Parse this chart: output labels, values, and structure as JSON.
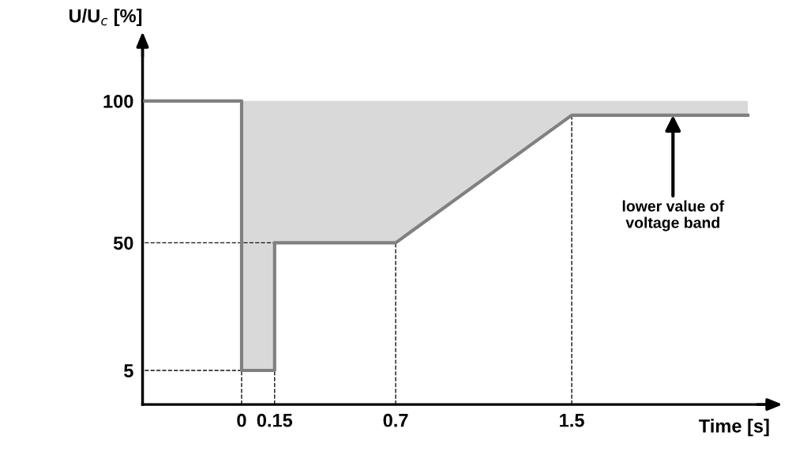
{
  "chart_data": {
    "type": "line",
    "xlabel": "Time [s]",
    "ylabel": "U/U$_{c}$ [%]",
    "x": [
      -0.44,
      0,
      0,
      0.15,
      0.15,
      0.7,
      1.5,
      2.3
    ],
    "series": [
      {
        "color": "#808080",
        "values": [
          100,
          100,
          5,
          5,
          50,
          50,
          95,
          95
        ],
        "lower": [
          100,
          100,
          5,
          5,
          50,
          50,
          95,
          95
        ],
        "upper": [
          100,
          100,
          100,
          100,
          100,
          100,
          100,
          100
        ]
      },
      {
        "type": "line",
        "line_style": "dashed",
        "color": "#111111",
        "x": [
          0,
          0
        ],
        "values": [
          -7,
          5
        ]
      },
      {
        "type": "line",
        "line_style": "dashed",
        "color": "#111111",
        "x": [
          0.15,
          0.15
        ],
        "values": [
          -7,
          5
        ]
      },
      {
        "type": "line",
        "line_style": "dashed",
        "color": "#111111",
        "x": [
          0.7,
          0.7
        ],
        "values": [
          -7,
          50
        ]
      },
      {
        "type": "line",
        "line_style": "dashed",
        "color": "#111111",
        "x": [
          1.5,
          1.5
        ],
        "values": [
          -7,
          95
        ]
      },
      {
        "type": "line",
        "line_style": "dashed",
        "color": "#111111",
        "x": [
          -0.44,
          0
        ],
        "values": [
          5,
          5
        ]
      },
      {
        "type": "line",
        "line_style": "dashed",
        "color": "#111111",
        "x": [
          -0.44,
          0.15
        ],
        "values": [
          50,
          50
        ]
      }
    ],
    "xlim": [
      -0.45,
      2.4
    ],
    "ylim": [
      -7,
      120
    ],
    "xticks": [
      0,
      0.15,
      0.7,
      1.5
    ],
    "yticks": [
      5,
      50,
      100
    ],
    "line_style": "solid",
    "marker": "none",
    "annotations": [
      {
        "text": "lower value of\nvoltage band",
        "x": 1.96,
        "y": 95
      }
    ]
  }
}
